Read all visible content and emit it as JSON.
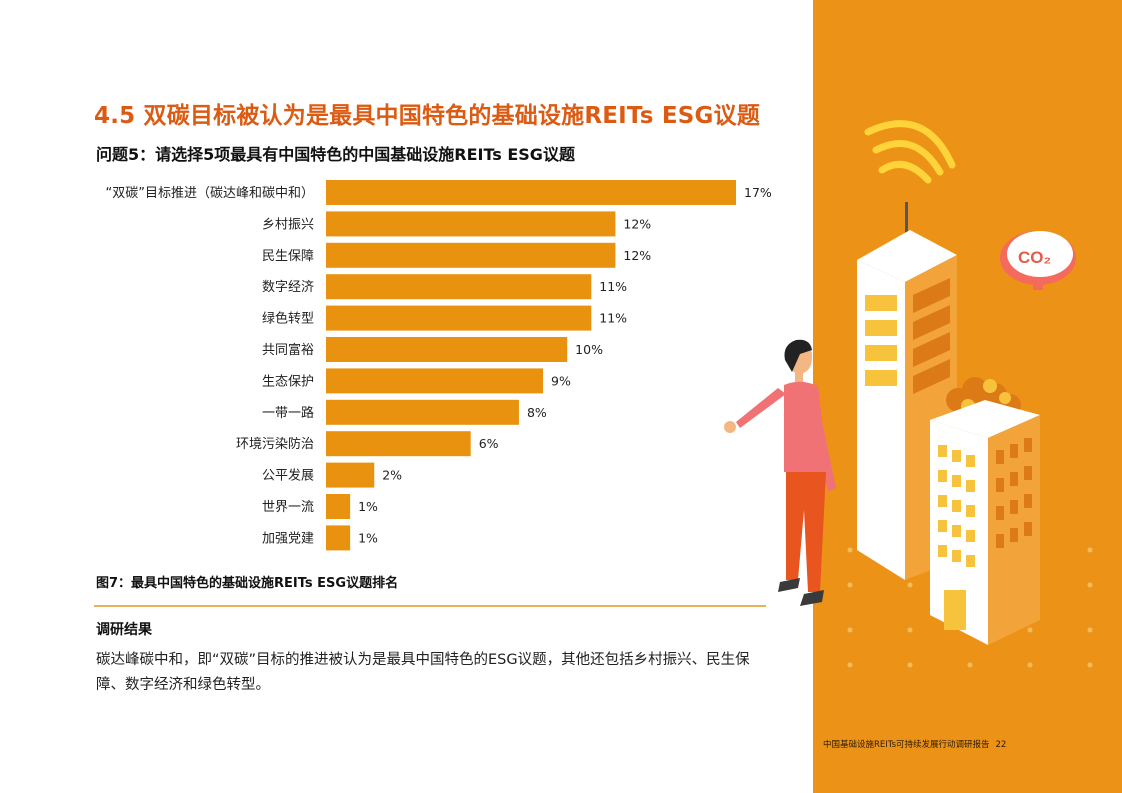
{
  "page": {
    "title": "4.5 双碳目标被认为是最具中国特色的基础设施REITs ESG议题",
    "question": "问题5：请选择5项最具有中国特色的中国基础设施REITs ESG议题",
    "figure_caption": "图7：最具中国特色的基础设施REITs ESG议题排名",
    "results_heading": "调研结果",
    "results_text": "碳达峰碳中和，即“双碳”目标的推进被认为是最具中国特色的ESG议题，其他还包括乡村振兴、民生保障、数字经济和绿色转型。",
    "footer_text": "中国基础设施REITs可持续发展行动调研报告",
    "page_number": "22",
    "co2_label": "CO₂"
  },
  "colors": {
    "title": "#dc5b13",
    "bar": "#e8920f",
    "panel": "#ec9317",
    "rule": "#e6b25a"
  },
  "chart_data": {
    "type": "bar",
    "orientation": "horizontal",
    "categories": [
      "“双碳”目标推进（碳达峰和碳中和）",
      "乡村振兴",
      "民生保障",
      "数字经济",
      "绿色转型",
      "共同富裕",
      "生态保护",
      "一带一路",
      "环境污染防治",
      "公平发展",
      "世界一流",
      "加强党建"
    ],
    "values": [
      17,
      12,
      12,
      11,
      11,
      10,
      9,
      8,
      6,
      2,
      1,
      1
    ],
    "value_labels": [
      "17%",
      "12%",
      "12%",
      "11%",
      "11%",
      "10%",
      "9%",
      "8%",
      "6%",
      "2%",
      "1%",
      "1%"
    ],
    "unit": "%",
    "xlim": [
      0,
      17
    ],
    "grid": false,
    "legend": "none"
  }
}
